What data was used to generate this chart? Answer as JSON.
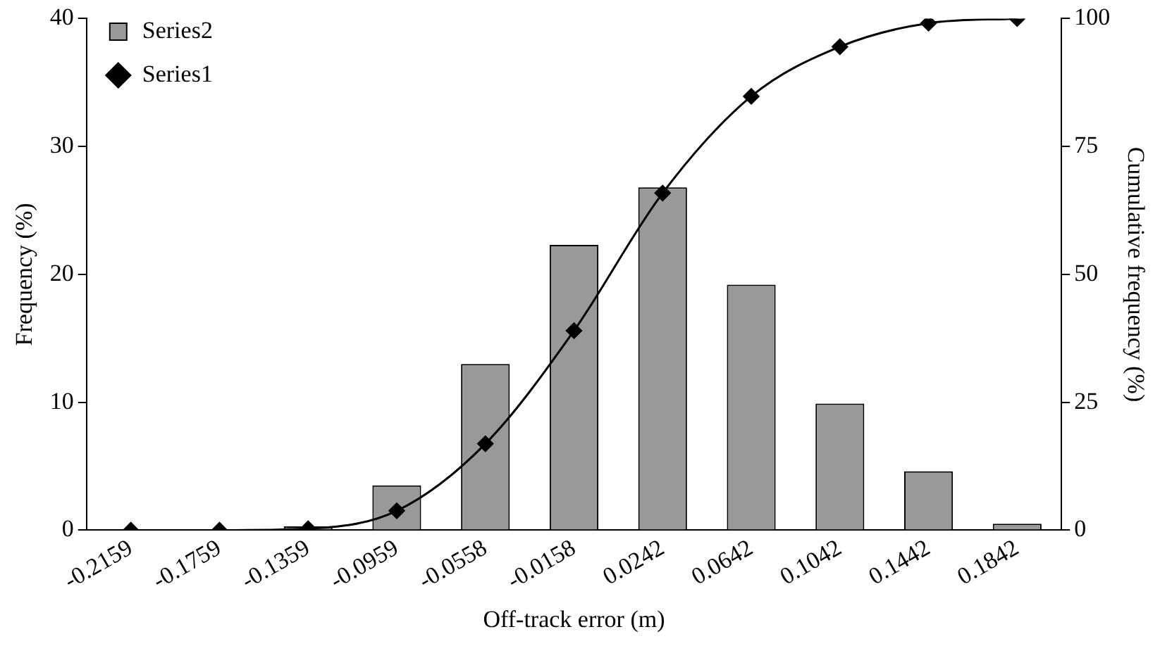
{
  "chart_data": {
    "type": "bar",
    "xlabel": "Off-track error (m)",
    "ylabel": "Frequency (%)",
    "y2label": "Cumulative frequency (%)",
    "categories": [
      "-0.2159",
      "-0.1759",
      "-0.1359",
      "-0.0959",
      "-0.0558",
      "-0.0158",
      "0.0242",
      "0.0642",
      "0.1042",
      "0.1442",
      "0.1842"
    ],
    "series": [
      {
        "name": "Series2",
        "color": "#999999",
        "values": [
          0,
          0,
          0.3,
          3.5,
          13,
          22.3,
          26.8,
          19.2,
          9.9,
          4.6,
          0.5
        ]
      },
      {
        "name": "Series1",
        "type": "line",
        "axis": "y2",
        "color": "#000000",
        "marker": "diamond",
        "line_style": "solid",
        "values": [
          0,
          0,
          0.3,
          3.8,
          16.9,
          39,
          65.9,
          84.8,
          94.5,
          99.1,
          100
        ]
      }
    ],
    "ylim": [
      0,
      40
    ],
    "yticks": [
      0,
      10,
      20,
      30,
      40
    ],
    "y2lim": [
      0,
      100
    ],
    "y2ticks": [
      0,
      25,
      50,
      75,
      100
    ],
    "grid": false,
    "legend": "top left"
  }
}
